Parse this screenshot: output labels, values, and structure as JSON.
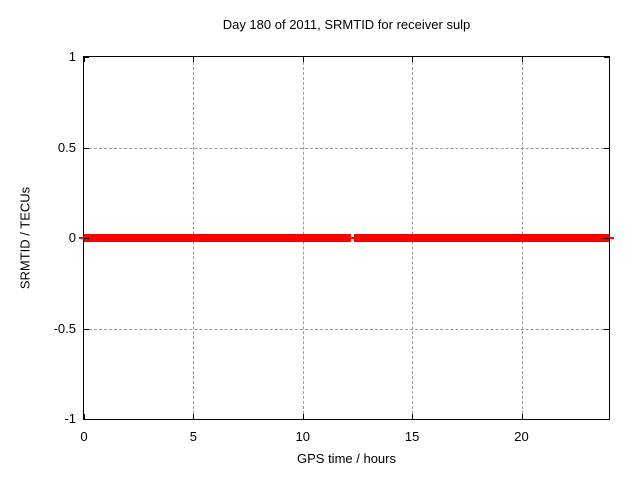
{
  "chart_data": {
    "type": "line",
    "title": "Day 180 of 2011, SRMTID for receiver sulp",
    "xlabel": "GPS time / hours",
    "ylabel": "SRMTID / TECUs",
    "xlim": [
      0,
      24
    ],
    "ylim": [
      -1,
      1
    ],
    "grid": true,
    "legend": false,
    "xticks": [
      {
        "v": 0,
        "label": "0"
      },
      {
        "v": 5,
        "label": "5"
      },
      {
        "v": 10,
        "label": "10"
      },
      {
        "v": 15,
        "label": "15"
      },
      {
        "v": 20,
        "label": "20"
      }
    ],
    "yticks": [
      {
        "v": 1,
        "label": "1"
      },
      {
        "v": 0.5,
        "label": "0.5"
      },
      {
        "v": 0,
        "label": "0"
      },
      {
        "v": -0.5,
        "label": "-0.5"
      },
      {
        "v": -1,
        "label": "-1"
      }
    ],
    "series": [
      {
        "name": "SRMTID",
        "color": "#ff0000",
        "style": "constant thick line of dense points at y=0 with thin connecting line",
        "y": 0,
        "line_x": [
          0,
          24
        ],
        "segments_x": [
          [
            0,
            12.21
          ],
          [
            12.32,
            24
          ]
        ],
        "gap_x": [
          12.21,
          12.32
        ]
      }
    ],
    "colors": {
      "background": "#ffffff",
      "border": "#000000",
      "grid": "#999999",
      "series": "#ff0000"
    }
  }
}
